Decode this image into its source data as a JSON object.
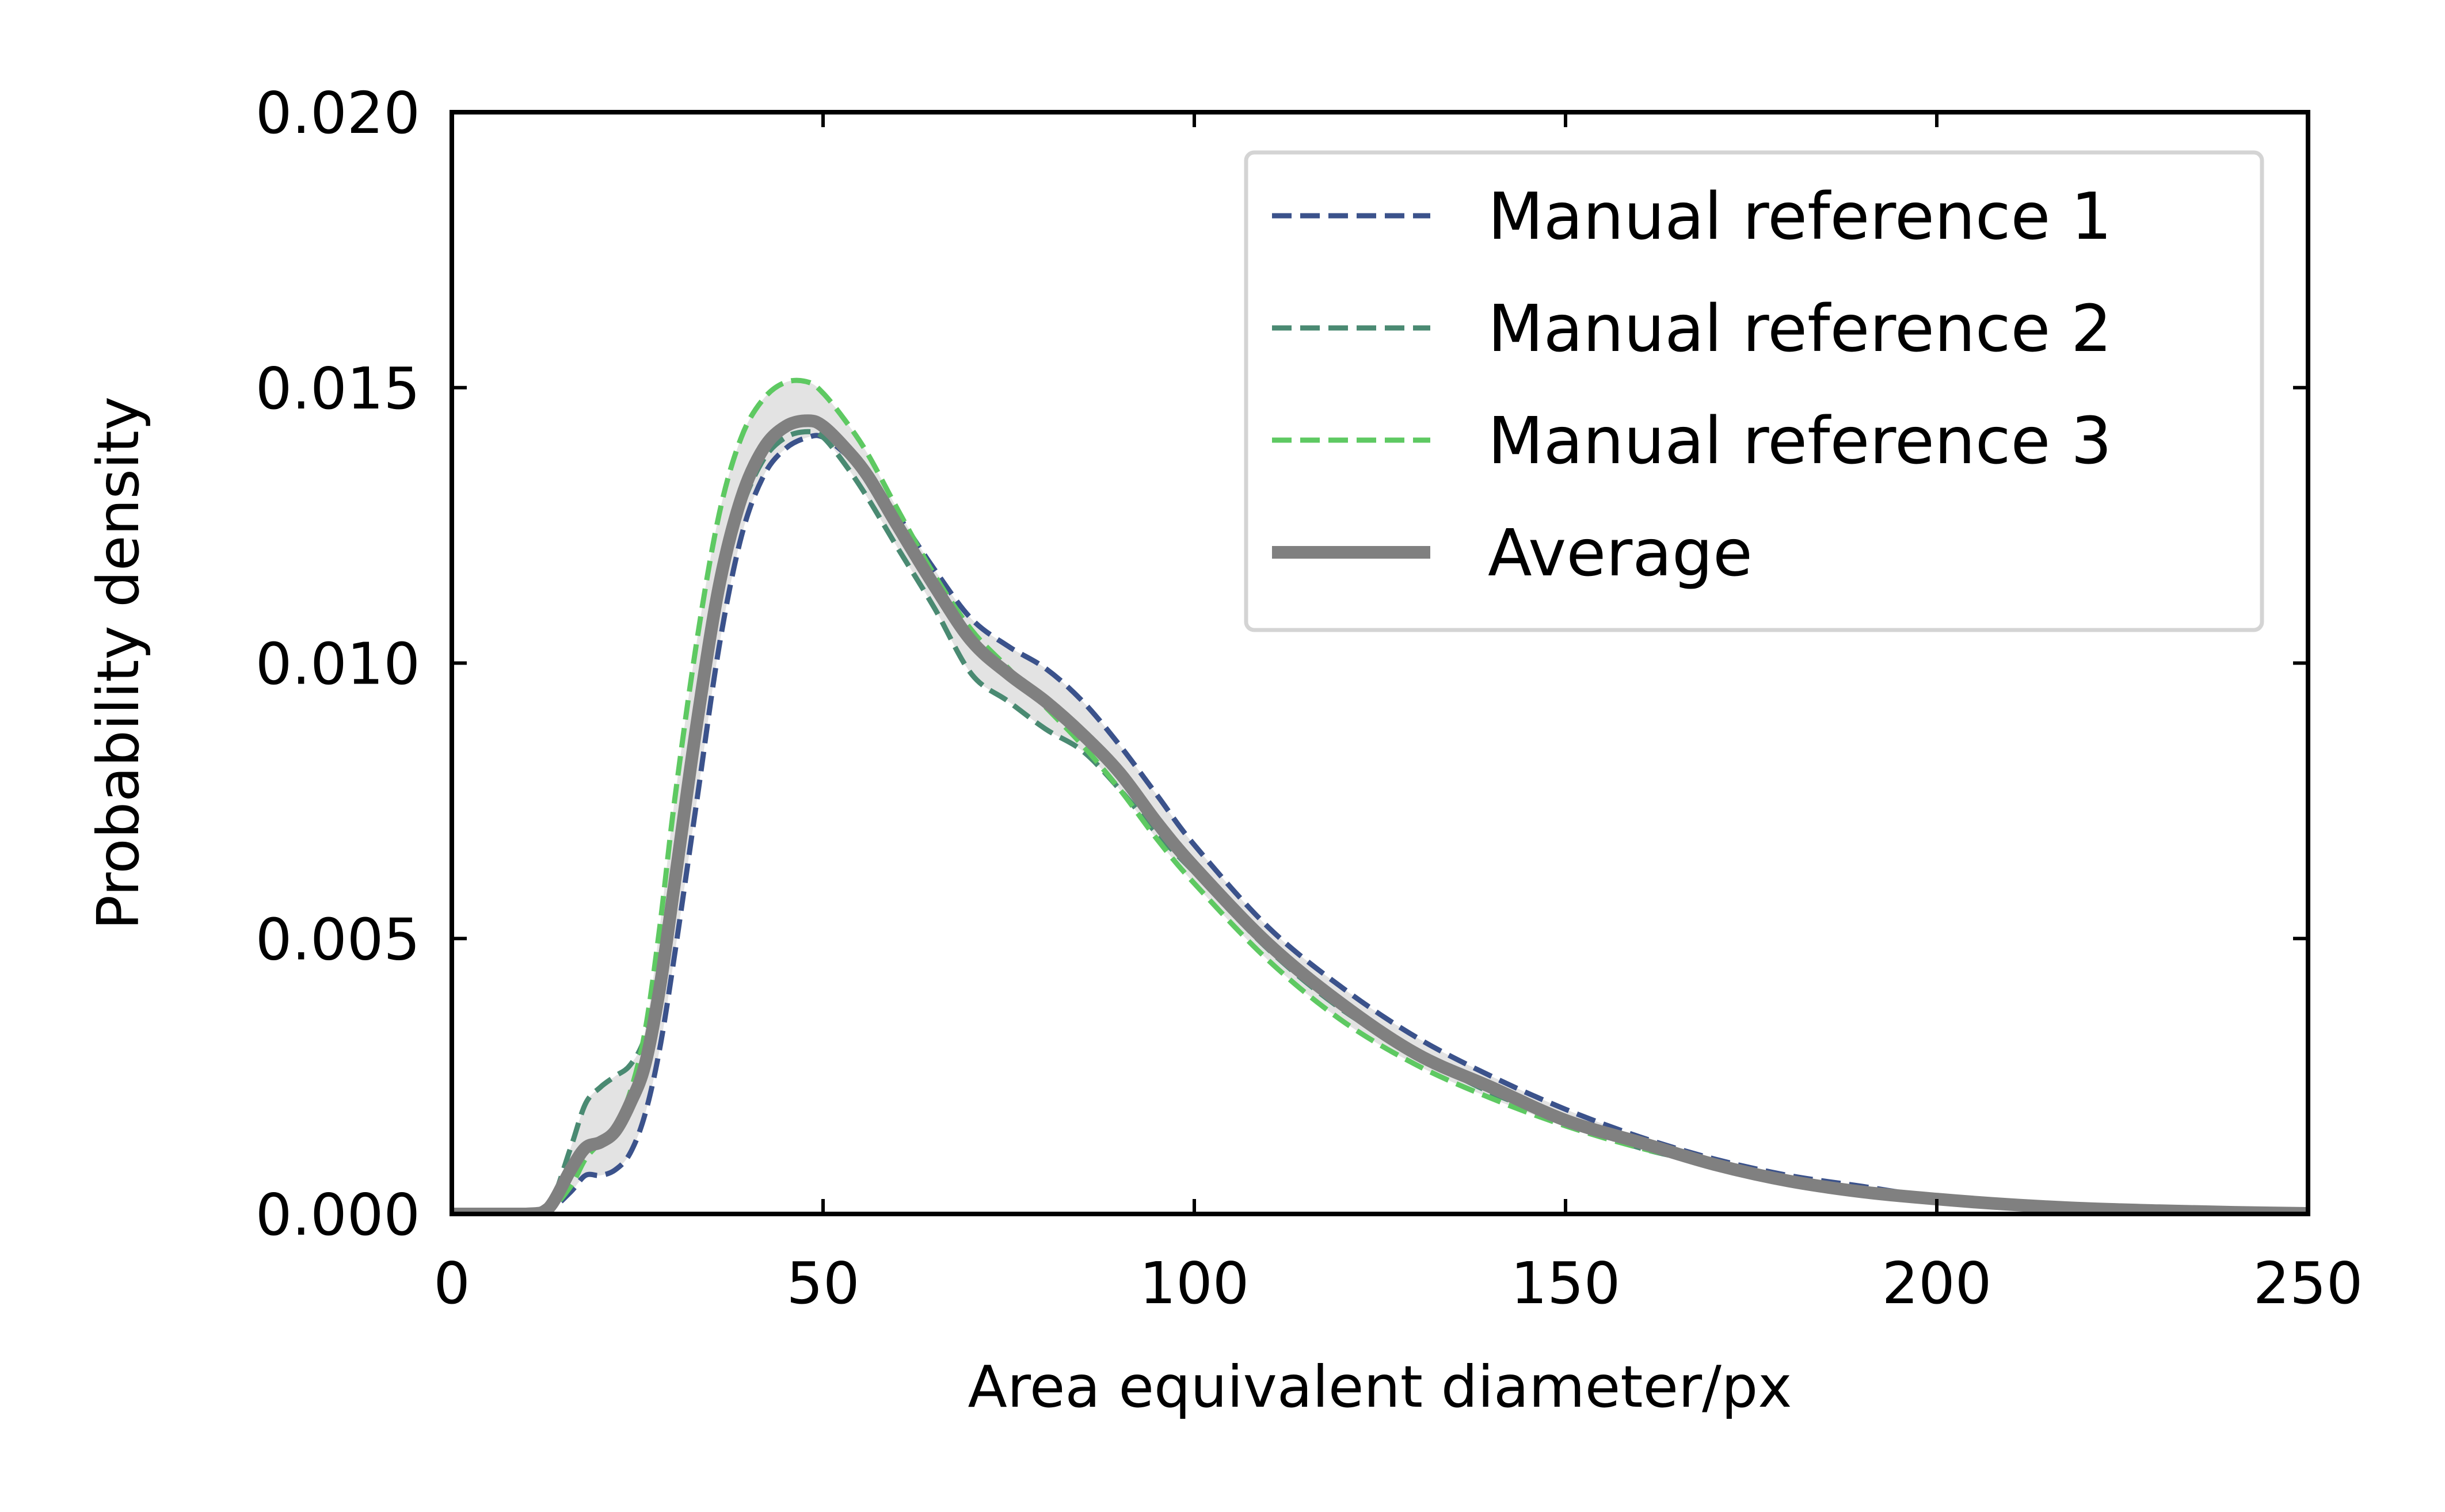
{
  "chart_data": {
    "type": "line",
    "title": "",
    "xlabel": "Area equivalent diameter/px",
    "ylabel": "Probability density",
    "xlim": [
      0,
      250
    ],
    "ylim": [
      0,
      0.02
    ],
    "x_ticks": [
      0,
      50,
      100,
      150,
      200,
      250
    ],
    "x_tick_labels": [
      "0",
      "50",
      "100",
      "150",
      "200",
      "250"
    ],
    "y_ticks": [
      0,
      0.005,
      0.01,
      0.015,
      0.02
    ],
    "y_tick_labels": [
      "0.000",
      "0.005",
      "0.010",
      "0.015",
      "0.020"
    ],
    "grid": false,
    "legend_position": "top-right",
    "x": [
      0,
      10,
      13,
      16,
      18,
      20,
      22,
      24,
      26,
      28,
      30,
      33,
      36,
      39,
      42,
      45,
      48,
      50,
      53,
      56,
      60,
      65,
      70,
      75,
      80,
      85,
      90,
      95,
      100,
      110,
      120,
      130,
      140,
      150,
      160,
      170,
      180,
      190,
      200,
      210,
      220,
      230,
      240,
      250
    ],
    "series": [
      {
        "name": "Manual reference 1",
        "style": "dashed",
        "color": "#3b528b",
        "values": [
          0,
          0,
          5e-05,
          0.0004,
          0.0007,
          0.0007,
          0.0008,
          0.0011,
          0.0018,
          0.003,
          0.0047,
          0.0075,
          0.0103,
          0.0123,
          0.0134,
          0.0139,
          0.0141,
          0.0141,
          0.0138,
          0.0134,
          0.0127,
          0.0117,
          0.0108,
          0.0103,
          0.0099,
          0.0093,
          0.0085,
          0.0076,
          0.0067,
          0.0052,
          0.0041,
          0.0032,
          0.0025,
          0.0019,
          0.0014,
          0.001,
          0.0007,
          0.0005,
          0.0003,
          0.0002,
          0.00012,
          7e-05,
          4e-05,
          2e-05
        ]
      },
      {
        "name": "Manual reference 2",
        "style": "dashed",
        "color": "#4a8a72",
        "values": [
          0,
          0,
          0.0001,
          0.0012,
          0.002,
          0.0023,
          0.0025,
          0.0027,
          0.0032,
          0.0043,
          0.006,
          0.0088,
          0.0113,
          0.0128,
          0.0137,
          0.0141,
          0.0142,
          0.0141,
          0.0136,
          0.013,
          0.0121,
          0.011,
          0.0098,
          0.0093,
          0.0088,
          0.0084,
          0.0077,
          0.0069,
          0.0062,
          0.0048,
          0.0037,
          0.0029,
          0.0022,
          0.0017,
          0.0012,
          0.0009,
          0.0006,
          0.0004,
          0.00025,
          0.00015,
          9e-05,
          5e-05,
          3e-05,
          1e-05
        ]
      },
      {
        "name": "Manual reference 3",
        "style": "dashed",
        "color": "#5ec962",
        "values": [
          0,
          0,
          5e-05,
          0.0005,
          0.001,
          0.0013,
          0.0016,
          0.0022,
          0.0033,
          0.0052,
          0.0075,
          0.0104,
          0.0127,
          0.0141,
          0.0148,
          0.0151,
          0.0151,
          0.0149,
          0.0144,
          0.0138,
          0.0128,
          0.0116,
          0.0106,
          0.0099,
          0.0092,
          0.0085,
          0.0077,
          0.0068,
          0.006,
          0.0046,
          0.0035,
          0.0027,
          0.0021,
          0.0016,
          0.0012,
          0.0009,
          0.0006,
          0.0004,
          0.00025,
          0.00015,
          9e-05,
          5e-05,
          3e-05,
          1e-05
        ]
      },
      {
        "name": "Average",
        "style": "solid",
        "color": "#808080",
        "values": [
          0,
          0,
          0.0001,
          0.0008,
          0.0012,
          0.0013,
          0.0015,
          0.002,
          0.0027,
          0.0041,
          0.006,
          0.0089,
          0.0114,
          0.013,
          0.0139,
          0.0143,
          0.0144,
          0.0143,
          0.0139,
          0.0134,
          0.0125,
          0.0114,
          0.0104,
          0.0098,
          0.0093,
          0.0087,
          0.008,
          0.0071,
          0.0063,
          0.0049,
          0.0038,
          0.0029,
          0.0023,
          0.0017,
          0.0013,
          0.0009,
          0.0006,
          0.0004,
          0.00027,
          0.00017,
          0.0001,
          6e-05,
          3e-05,
          1e-05
        ]
      }
    ]
  }
}
